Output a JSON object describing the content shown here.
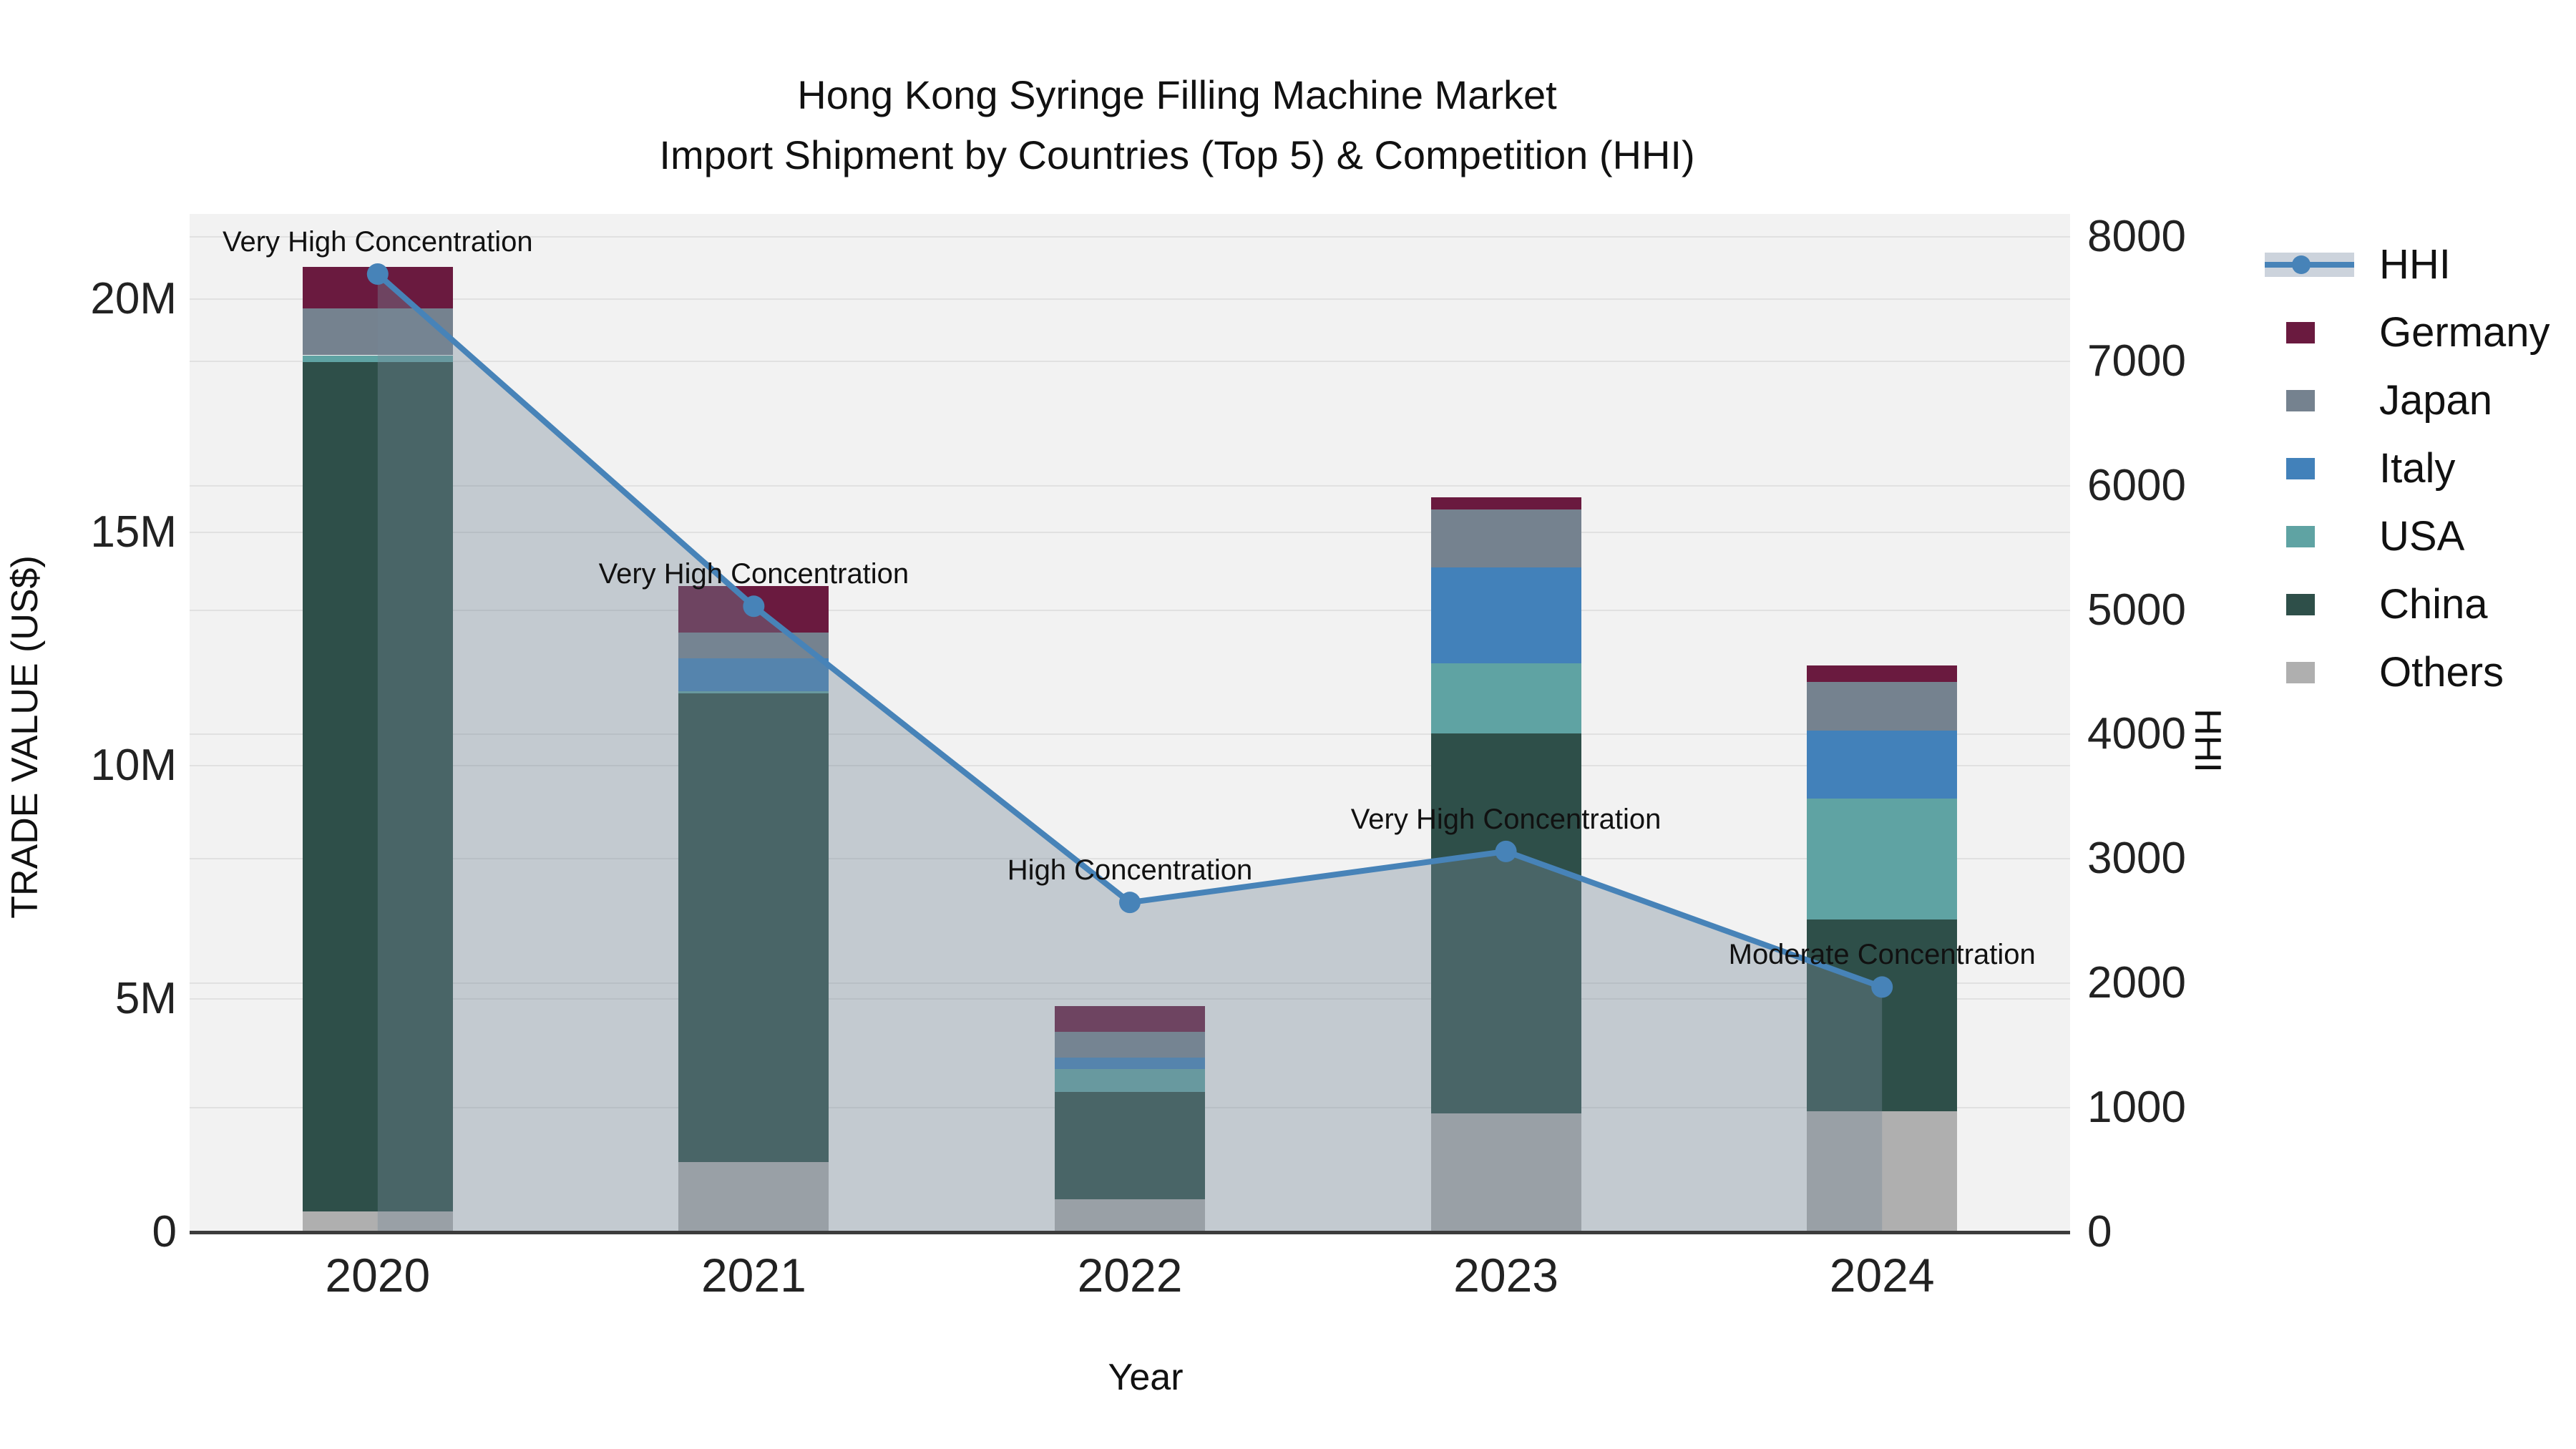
{
  "title": {
    "line1": "Hong Kong Syringe Filling Machine Market",
    "line2": "Import Shipment by Countries (Top 5) & Competition (HHI)"
  },
  "x_axis": {
    "title": "Year",
    "tick_labels": [
      "2020",
      "2021",
      "2022",
      "2023",
      "2024"
    ]
  },
  "y_left_axis": {
    "title": "TRADE VALUE (US$)",
    "tick_labels": [
      "0",
      "5M",
      "10M",
      "15M",
      "20M"
    ],
    "tick_values_millions": [
      0,
      5,
      10,
      15,
      20
    ],
    "scale_top_millions": 21.83
  },
  "y_right_axis": {
    "title": "HHI",
    "tick_labels": [
      "0",
      "1000",
      "2000",
      "3000",
      "4000",
      "5000",
      "6000",
      "7000",
      "8000"
    ],
    "tick_values": [
      0,
      1000,
      2000,
      3000,
      4000,
      5000,
      6000,
      7000,
      8000
    ],
    "scale_top": 8183
  },
  "legend": {
    "items": [
      {
        "id": "hhi",
        "label": "HHI",
        "type": "line",
        "color": "#4783b8"
      },
      {
        "id": "germany",
        "label": "Germany",
        "type": "box",
        "color": "#6a1a3f"
      },
      {
        "id": "japan",
        "label": "Japan",
        "type": "box",
        "color": "#75828f"
      },
      {
        "id": "italy",
        "label": "Italy",
        "type": "box",
        "color": "#4281ba"
      },
      {
        "id": "usa",
        "label": "USA",
        "type": "box",
        "color": "#5fa3a3"
      },
      {
        "id": "china",
        "label": "China",
        "type": "box",
        "color": "#2e4f49"
      },
      {
        "id": "others",
        "label": "Others",
        "type": "box",
        "color": "#afafaf"
      }
    ]
  },
  "colors": {
    "plot_background": "#f2f2f2",
    "gridline": "#e1e1e1",
    "axis_line": "#3c3c3c",
    "hhi_line": "#4783b8",
    "hhi_area_fill": "rgba(119,136,153,0.38)"
  },
  "chart_data": {
    "type": "bar",
    "stacked": true,
    "title": "Hong Kong Syringe Filling Machine Market — Import Shipment by Countries (Top 5) & Competition (HHI)",
    "xlabel": "Year",
    "ylabel_left": "TRADE VALUE (US$)",
    "ylabel_right": "HHI",
    "categories": [
      "2020",
      "2021",
      "2022",
      "2023",
      "2024"
    ],
    "bar_unit": "millions US$",
    "ylim_left_millions": [
      0,
      21.83
    ],
    "ylim_right": [
      0,
      8183
    ],
    "grid": true,
    "legend_position": "right",
    "series": [
      {
        "name": "Others",
        "color": "#afafaf",
        "values": [
          0.45,
          1.5,
          0.7,
          2.55,
          2.6
        ]
      },
      {
        "name": "China",
        "color": "#2e4f49",
        "values": [
          18.2,
          10.05,
          2.3,
          8.15,
          4.1
        ]
      },
      {
        "name": "USA",
        "color": "#5fa3a3",
        "values": [
          0.15,
          0.05,
          0.5,
          1.5,
          2.6
        ]
      },
      {
        "name": "Italy",
        "color": "#4281ba",
        "values": [
          0.0,
          0.7,
          0.25,
          2.05,
          1.45
        ]
      },
      {
        "name": "Japan",
        "color": "#75828f",
        "values": [
          1.0,
          0.55,
          0.55,
          1.25,
          1.05
        ]
      },
      {
        "name": "Germany",
        "color": "#6a1a3f",
        "values": [
          0.9,
          1.0,
          0.55,
          0.25,
          0.35
        ]
      }
    ],
    "bar_totals_millions": [
      20.7,
      13.85,
      4.85,
      15.75,
      12.15
    ],
    "line_series": {
      "name": "HHI",
      "axis": "right",
      "color": "#4783b8",
      "area_fill": "rgba(119,136,153,0.38)",
      "values": [
        7700,
        5030,
        2650,
        3060,
        1970
      ]
    },
    "annotations": [
      {
        "year": "2020",
        "text": "Very High Concentration"
      },
      {
        "year": "2021",
        "text": "Very High Concentration"
      },
      {
        "year": "2022",
        "text": "High Concentration"
      },
      {
        "year": "2023",
        "text": "Very High Concentration"
      },
      {
        "year": "2024",
        "text": "Moderate Concentration"
      }
    ]
  }
}
